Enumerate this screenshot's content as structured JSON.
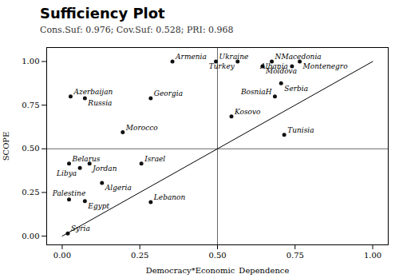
{
  "chart_data": {
    "type": "scatter",
    "title": "Sufficiency Plot",
    "subtitle": "Cons.Suf: 0.976; Cov.Suf: 0.528; PRI: 0.968",
    "xlabel": "Democracy*Economic_Dependence",
    "ylabel": "SCOPE",
    "xlim": [
      -0.05,
      1.05
    ],
    "ylim": [
      -0.05,
      1.08
    ],
    "xticks": [
      {
        "value": 0.0,
        "label": "0.00"
      },
      {
        "value": 0.25,
        "label": "0.25"
      },
      {
        "value": 0.5,
        "label": "0.50"
      },
      {
        "value": 0.75,
        "label": "0.75"
      },
      {
        "value": 1.0,
        "label": "1.00"
      }
    ],
    "yticks": [
      {
        "value": 0.0,
        "label": "0.00"
      },
      {
        "value": 0.25,
        "label": "0.25"
      },
      {
        "value": 0.5,
        "label": "0.50"
      },
      {
        "value": 0.75,
        "label": "0.75"
      },
      {
        "value": 1.0,
        "label": "1.00"
      }
    ],
    "grid": false,
    "color": "#111111",
    "hline": 0.5,
    "vline": 0.5,
    "diagonal": {
      "x": [
        0.0,
        1.0
      ],
      "y": [
        0.0,
        1.0
      ]
    },
    "points": [
      {
        "label": "Armenia",
        "x": 0.355,
        "y": 1.0
      },
      {
        "label": "Ukraine",
        "x": 0.495,
        "y": 1.0
      },
      {
        "label": "Turkey",
        "x": 0.565,
        "y": 1.0
      },
      {
        "label": "NMacedonia",
        "x": 0.675,
        "y": 1.0
      },
      {
        "label": "Montenegro",
        "x": 0.765,
        "y": 1.0
      },
      {
        "label": "Moldova",
        "x": 0.645,
        "y": 0.972
      },
      {
        "label": "Albania",
        "x": 0.74,
        "y": 0.972
      },
      {
        "label": "Azerbaijan",
        "x": 0.027,
        "y": 0.8
      },
      {
        "label": "Russia",
        "x": 0.073,
        "y": 0.79
      },
      {
        "label": "Georgia",
        "x": 0.285,
        "y": 0.79
      },
      {
        "label": "Serbia",
        "x": 0.705,
        "y": 0.875
      },
      {
        "label": "BosniaH",
        "x": 0.685,
        "y": 0.8
      },
      {
        "label": "Morocco",
        "x": 0.195,
        "y": 0.595
      },
      {
        "label": "Kosovo",
        "x": 0.545,
        "y": 0.685
      },
      {
        "label": "Tunisia",
        "x": 0.715,
        "y": 0.58
      },
      {
        "label": "Belarus",
        "x": 0.022,
        "y": 0.415
      },
      {
        "label": "Jordan",
        "x": 0.088,
        "y": 0.415
      },
      {
        "label": "Libya",
        "x": 0.057,
        "y": 0.39
      },
      {
        "label": "Israel",
        "x": 0.255,
        "y": 0.415
      },
      {
        "label": "Algeria",
        "x": 0.128,
        "y": 0.305
      },
      {
        "label": "Palestine",
        "x": 0.022,
        "y": 0.21
      },
      {
        "label": "Egypt",
        "x": 0.073,
        "y": 0.2
      },
      {
        "label": "Lebanon",
        "x": 0.285,
        "y": 0.195
      },
      {
        "label": "Syria",
        "x": 0.018,
        "y": 0.015
      }
    ]
  }
}
